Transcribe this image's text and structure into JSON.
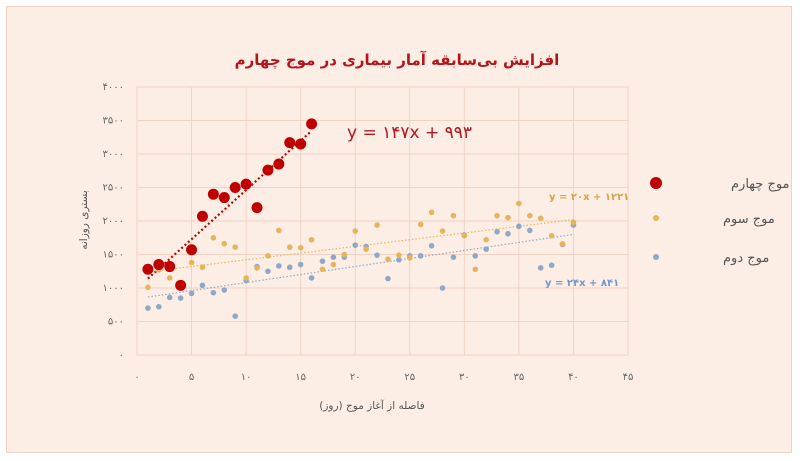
{
  "chart_data": {
    "type": "scatter",
    "title": "افزایش بی‌سابقه آمار بیماری در موج چهارم",
    "xlabel": "فاصله از آغاز موج (روز)",
    "ylabel": "بستری روزانه",
    "xlim": [
      0,
      45
    ],
    "ylim": [
      0,
      4000
    ],
    "x_ticks": [
      "۰",
      "۵",
      "۱۰",
      "۱۵",
      "۲۰",
      "۲۵",
      "۳۰",
      "۳۵",
      "۴۰",
      "۴۵"
    ],
    "y_ticks": [
      "۰",
      "۵۰۰",
      "۱۰۰۰",
      "۱۵۰۰",
      "۲۰۰۰",
      "۲۵۰۰",
      "۳۰۰۰",
      "۳۵۰۰",
      "۴۰۰۰"
    ],
    "grid": true,
    "legend_position": "right",
    "series": [
      {
        "name": "موج چهارم",
        "color": "#c00000",
        "marker_size": "large",
        "x": [
          1,
          2,
          3,
          4,
          5,
          6,
          7,
          8,
          9,
          10,
          11,
          12,
          13,
          14,
          15,
          16
        ],
        "y": [
          1280,
          1350,
          1320,
          1040,
          1570,
          2070,
          2400,
          2350,
          2500,
          2550,
          2200,
          2760,
          2850,
          3170,
          3150,
          3450
        ],
        "trendline": {
          "slope": 147,
          "intercept": 993,
          "x_range": [
            1,
            16
          ],
          "label": "y = ۱۴۷x + ۹۹۳"
        }
      },
      {
        "name": "موج سوم",
        "color": "#e5b55c",
        "marker_size": "small",
        "x": [
          1,
          2,
          3,
          4,
          5,
          6,
          7,
          8,
          9,
          10,
          11,
          12,
          13,
          14,
          15,
          16,
          17,
          18,
          19,
          20,
          21,
          22,
          23,
          24,
          25,
          26,
          27,
          28,
          29,
          30,
          31,
          32,
          33,
          34,
          35,
          36,
          37,
          38,
          39,
          40
        ],
        "y": [
          1010,
          1270,
          1150,
          1000,
          1380,
          1310,
          1750,
          1660,
          1610,
          1150,
          1300,
          1480,
          1860,
          1610,
          1600,
          1720,
          1280,
          1350,
          1500,
          1850,
          1580,
          1940,
          1430,
          1490,
          1450,
          1950,
          2130,
          1850,
          2080,
          1780,
          1280,
          1720,
          2080,
          2050,
          2260,
          2080,
          2040,
          1780,
          1660,
          1980
        ],
        "trendline": {
          "slope": 20,
          "intercept": 1221,
          "x_range": [
            1,
            40
          ],
          "label": "y = ۲۰x + ۱۲۲۱"
        }
      },
      {
        "name": "موج دوم",
        "color": "#8fa8c8",
        "marker_size": "small",
        "x": [
          1,
          2,
          3,
          4,
          5,
          6,
          7,
          8,
          9,
          10,
          11,
          12,
          13,
          14,
          15,
          16,
          17,
          18,
          19,
          20,
          21,
          22,
          23,
          24,
          25,
          26,
          27,
          28,
          29,
          30,
          31,
          32,
          33,
          34,
          35,
          36,
          37,
          38,
          39,
          40
        ],
        "y": [
          700,
          720,
          860,
          850,
          920,
          1040,
          930,
          970,
          580,
          1110,
          1320,
          1250,
          1330,
          1310,
          1350,
          1150,
          1400,
          1460,
          1460,
          1640,
          1620,
          1490,
          1140,
          1420,
          1480,
          1480,
          1630,
          1000,
          1460,
          1790,
          1480,
          1580,
          1840,
          1810,
          1920,
          1860,
          1300,
          1340,
          1650,
          1940
        ],
        "trendline": {
          "slope": 24,
          "intercept": 841,
          "x_range": [
            1,
            40
          ],
          "label": "y = ۲۴x + ۸۴۱"
        }
      }
    ]
  }
}
